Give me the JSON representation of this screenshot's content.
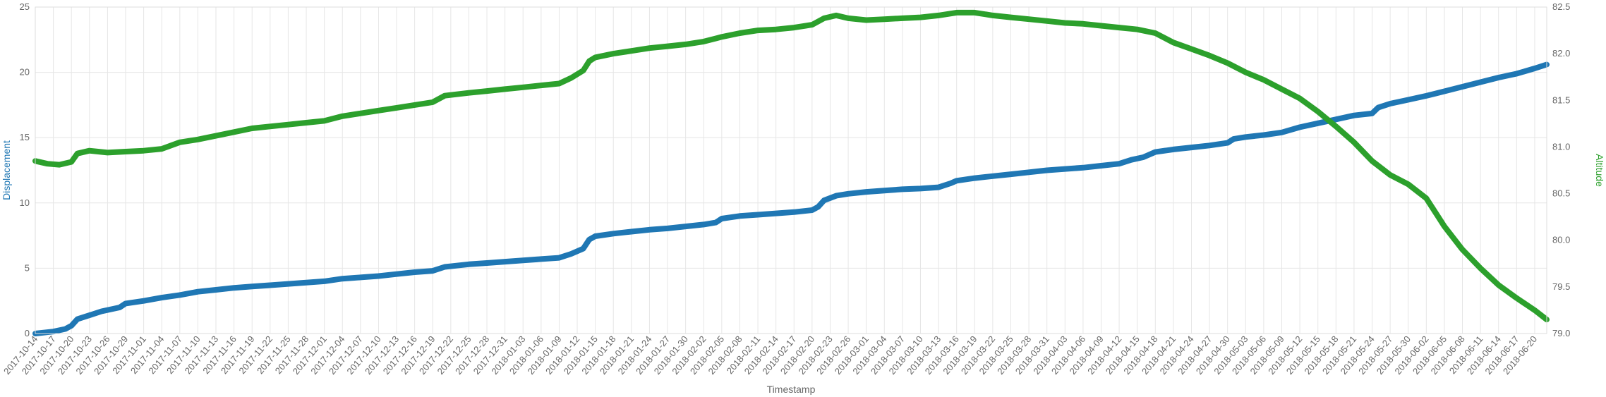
{
  "chart_data": {
    "type": "line",
    "xlabel": "Timestamp",
    "y_left": {
      "label": "Displacement",
      "range": [
        0,
        25
      ],
      "ticks": [
        0,
        5,
        10,
        15,
        20,
        25
      ],
      "tick_labels": [
        "0",
        "5",
        "10",
        "15",
        "20",
        "25"
      ],
      "color": "#1f77b4"
    },
    "y_right": {
      "label": "Altitude",
      "range": [
        79.0,
        82.5
      ],
      "ticks": [
        79.0,
        79.5,
        80.0,
        80.5,
        81.0,
        81.5,
        82.0,
        82.5
      ],
      "tick_labels": [
        "79.0",
        "79.5",
        "80.0",
        "80.5",
        "81.0",
        "81.5",
        "82.0",
        "82.5"
      ],
      "color": "#2ca02c"
    },
    "x_range": [
      "2017-10-14",
      "2018-06-22"
    ],
    "x_tick_labels": [
      "2017-10-14",
      "2017-10-17",
      "2017-10-20",
      "2017-10-23",
      "2017-10-26",
      "2017-10-29",
      "2017-11-01",
      "2017-11-04",
      "2017-11-07",
      "2017-11-10",
      "2017-11-13",
      "2017-11-16",
      "2017-11-19",
      "2017-11-22",
      "2017-11-25",
      "2017-11-28",
      "2017-12-01",
      "2017-12-04",
      "2017-12-07",
      "2017-12-10",
      "2017-12-13",
      "2017-12-16",
      "2017-12-19",
      "2017-12-22",
      "2017-12-25",
      "2017-12-28",
      "2017-12-31",
      "2018-01-03",
      "2018-01-06",
      "2018-01-09",
      "2018-01-12",
      "2018-01-15",
      "2018-01-18",
      "2018-01-21",
      "2018-01-24",
      "2018-01-27",
      "2018-01-30",
      "2018-02-02",
      "2018-02-05",
      "2018-02-08",
      "2018-02-11",
      "2018-02-14",
      "2018-02-17",
      "2018-02-20",
      "2018-02-23",
      "2018-02-26",
      "2018-03-01",
      "2018-03-04",
      "2018-03-07",
      "2018-03-10",
      "2018-03-13",
      "2018-03-16",
      "2018-03-19",
      "2018-03-22",
      "2018-03-25",
      "2018-03-28",
      "2018-03-31",
      "2018-04-03",
      "2018-04-06",
      "2018-04-09",
      "2018-04-12",
      "2018-04-15",
      "2018-04-18",
      "2018-04-21",
      "2018-04-24",
      "2018-04-27",
      "2018-04-30",
      "2018-05-03",
      "2018-05-06",
      "2018-05-09",
      "2018-05-12",
      "2018-05-15",
      "2018-05-18",
      "2018-05-21",
      "2018-05-24",
      "2018-05-27",
      "2018-05-30",
      "2018-06-02",
      "2018-06-05",
      "2018-06-08",
      "2018-06-11",
      "2018-06-14",
      "2018-06-17",
      "2018-06-20"
    ],
    "grid": true,
    "legend": "none",
    "series": [
      {
        "axis": "left",
        "color": "#1f77b4",
        "points": [
          [
            "2017-10-14",
            0.0
          ],
          [
            "2017-10-17",
            0.15
          ],
          [
            "2017-10-19",
            0.35
          ],
          [
            "2017-10-20",
            0.6
          ],
          [
            "2017-10-21",
            1.1
          ],
          [
            "2017-10-23",
            1.4
          ],
          [
            "2017-10-25",
            1.7
          ],
          [
            "2017-10-28",
            2.0
          ],
          [
            "2017-10-29",
            2.3
          ],
          [
            "2017-11-01",
            2.5
          ],
          [
            "2017-11-04",
            2.75
          ],
          [
            "2017-11-07",
            2.95
          ],
          [
            "2017-11-10",
            3.2
          ],
          [
            "2017-11-13",
            3.35
          ],
          [
            "2017-11-16",
            3.5
          ],
          [
            "2017-11-19",
            3.6
          ],
          [
            "2017-11-22",
            3.7
          ],
          [
            "2017-11-25",
            3.8
          ],
          [
            "2017-11-28",
            3.9
          ],
          [
            "2017-12-01",
            4.0
          ],
          [
            "2017-12-04",
            4.2
          ],
          [
            "2017-12-07",
            4.3
          ],
          [
            "2017-12-10",
            4.4
          ],
          [
            "2017-12-13",
            4.55
          ],
          [
            "2017-12-16",
            4.7
          ],
          [
            "2017-12-19",
            4.8
          ],
          [
            "2017-12-21",
            5.1
          ],
          [
            "2017-12-25",
            5.3
          ],
          [
            "2017-12-28",
            5.4
          ],
          [
            "2017-12-31",
            5.5
          ],
          [
            "2018-01-03",
            5.6
          ],
          [
            "2018-01-06",
            5.7
          ],
          [
            "2018-01-09",
            5.8
          ],
          [
            "2018-01-11",
            6.1
          ],
          [
            "2018-01-13",
            6.5
          ],
          [
            "2018-01-14",
            7.2
          ],
          [
            "2018-01-15",
            7.45
          ],
          [
            "2018-01-18",
            7.65
          ],
          [
            "2018-01-21",
            7.8
          ],
          [
            "2018-01-24",
            7.95
          ],
          [
            "2018-01-27",
            8.05
          ],
          [
            "2018-01-30",
            8.2
          ],
          [
            "2018-02-02",
            8.35
          ],
          [
            "2018-02-04",
            8.5
          ],
          [
            "2018-02-05",
            8.8
          ],
          [
            "2018-02-08",
            9.0
          ],
          [
            "2018-02-11",
            9.1
          ],
          [
            "2018-02-14",
            9.2
          ],
          [
            "2018-02-17",
            9.3
          ],
          [
            "2018-02-20",
            9.45
          ],
          [
            "2018-02-21",
            9.7
          ],
          [
            "2018-02-22",
            10.2
          ],
          [
            "2018-02-24",
            10.55
          ],
          [
            "2018-02-26",
            10.7
          ],
          [
            "2018-03-01",
            10.85
          ],
          [
            "2018-03-04",
            10.95
          ],
          [
            "2018-03-07",
            11.05
          ],
          [
            "2018-03-10",
            11.1
          ],
          [
            "2018-03-13",
            11.2
          ],
          [
            "2018-03-15",
            11.5
          ],
          [
            "2018-03-16",
            11.7
          ],
          [
            "2018-03-19",
            11.9
          ],
          [
            "2018-03-22",
            12.05
          ],
          [
            "2018-03-25",
            12.2
          ],
          [
            "2018-03-28",
            12.35
          ],
          [
            "2018-03-31",
            12.5
          ],
          [
            "2018-04-03",
            12.6
          ],
          [
            "2018-04-06",
            12.7
          ],
          [
            "2018-04-09",
            12.85
          ],
          [
            "2018-04-12",
            13.0
          ],
          [
            "2018-04-14",
            13.3
          ],
          [
            "2018-04-16",
            13.5
          ],
          [
            "2018-04-18",
            13.9
          ],
          [
            "2018-04-21",
            14.1
          ],
          [
            "2018-04-24",
            14.25
          ],
          [
            "2018-04-27",
            14.4
          ],
          [
            "2018-04-30",
            14.6
          ],
          [
            "2018-05-01",
            14.9
          ],
          [
            "2018-05-03",
            15.05
          ],
          [
            "2018-05-06",
            15.2
          ],
          [
            "2018-05-09",
            15.4
          ],
          [
            "2018-05-12",
            15.8
          ],
          [
            "2018-05-15",
            16.1
          ],
          [
            "2018-05-18",
            16.4
          ],
          [
            "2018-05-21",
            16.7
          ],
          [
            "2018-05-24",
            16.85
          ],
          [
            "2018-05-25",
            17.3
          ],
          [
            "2018-05-27",
            17.6
          ],
          [
            "2018-05-30",
            17.9
          ],
          [
            "2018-06-02",
            18.2
          ],
          [
            "2018-06-05",
            18.55
          ],
          [
            "2018-06-08",
            18.9
          ],
          [
            "2018-06-11",
            19.25
          ],
          [
            "2018-06-14",
            19.6
          ],
          [
            "2018-06-17",
            19.9
          ],
          [
            "2018-06-20",
            20.3
          ],
          [
            "2018-06-22",
            20.6
          ]
        ]
      },
      {
        "axis": "right",
        "color": "#2ca02c",
        "points": [
          [
            "2017-10-14",
            80.85
          ],
          [
            "2017-10-16",
            80.82
          ],
          [
            "2017-10-18",
            80.81
          ],
          [
            "2017-10-20",
            80.84
          ],
          [
            "2017-10-21",
            80.93
          ],
          [
            "2017-10-23",
            80.96
          ],
          [
            "2017-10-26",
            80.94
          ],
          [
            "2017-10-29",
            80.95
          ],
          [
            "2017-11-01",
            80.96
          ],
          [
            "2017-11-04",
            80.98
          ],
          [
            "2017-11-07",
            81.05
          ],
          [
            "2017-11-10",
            81.08
          ],
          [
            "2017-11-13",
            81.12
          ],
          [
            "2017-11-16",
            81.16
          ],
          [
            "2017-11-19",
            81.2
          ],
          [
            "2017-11-22",
            81.22
          ],
          [
            "2017-11-25",
            81.24
          ],
          [
            "2017-11-28",
            81.26
          ],
          [
            "2017-12-01",
            81.28
          ],
          [
            "2017-12-04",
            81.33
          ],
          [
            "2017-12-07",
            81.36
          ],
          [
            "2017-12-10",
            81.39
          ],
          [
            "2017-12-13",
            81.42
          ],
          [
            "2017-12-16",
            81.45
          ],
          [
            "2017-12-19",
            81.48
          ],
          [
            "2017-12-21",
            81.55
          ],
          [
            "2017-12-25",
            81.58
          ],
          [
            "2017-12-28",
            81.6
          ],
          [
            "2017-12-31",
            81.62
          ],
          [
            "2018-01-03",
            81.64
          ],
          [
            "2018-01-06",
            81.66
          ],
          [
            "2018-01-09",
            81.68
          ],
          [
            "2018-01-11",
            81.74
          ],
          [
            "2018-01-13",
            81.82
          ],
          [
            "2018-01-14",
            81.92
          ],
          [
            "2018-01-15",
            81.96
          ],
          [
            "2018-01-18",
            82.0
          ],
          [
            "2018-01-21",
            82.03
          ],
          [
            "2018-01-24",
            82.06
          ],
          [
            "2018-01-27",
            82.08
          ],
          [
            "2018-01-30",
            82.1
          ],
          [
            "2018-02-02",
            82.13
          ],
          [
            "2018-02-05",
            82.18
          ],
          [
            "2018-02-08",
            82.22
          ],
          [
            "2018-02-11",
            82.25
          ],
          [
            "2018-02-14",
            82.26
          ],
          [
            "2018-02-17",
            82.28
          ],
          [
            "2018-02-20",
            82.31
          ],
          [
            "2018-02-22",
            82.38
          ],
          [
            "2018-02-24",
            82.41
          ],
          [
            "2018-02-26",
            82.38
          ],
          [
            "2018-03-01",
            82.36
          ],
          [
            "2018-03-04",
            82.37
          ],
          [
            "2018-03-07",
            82.38
          ],
          [
            "2018-03-10",
            82.39
          ],
          [
            "2018-03-13",
            82.41
          ],
          [
            "2018-03-16",
            82.44
          ],
          [
            "2018-03-19",
            82.44
          ],
          [
            "2018-03-22",
            82.41
          ],
          [
            "2018-03-25",
            82.39
          ],
          [
            "2018-03-28",
            82.37
          ],
          [
            "2018-03-31",
            82.35
          ],
          [
            "2018-04-03",
            82.33
          ],
          [
            "2018-04-06",
            82.32
          ],
          [
            "2018-04-09",
            82.3
          ],
          [
            "2018-04-12",
            82.28
          ],
          [
            "2018-04-15",
            82.26
          ],
          [
            "2018-04-18",
            82.22
          ],
          [
            "2018-04-21",
            82.12
          ],
          [
            "2018-04-24",
            82.05
          ],
          [
            "2018-04-27",
            81.98
          ],
          [
            "2018-04-30",
            81.9
          ],
          [
            "2018-05-03",
            81.8
          ],
          [
            "2018-05-06",
            81.72
          ],
          [
            "2018-05-09",
            81.62
          ],
          [
            "2018-05-12",
            81.52
          ],
          [
            "2018-05-15",
            81.38
          ],
          [
            "2018-05-18",
            81.22
          ],
          [
            "2018-05-21",
            81.05
          ],
          [
            "2018-05-24",
            80.85
          ],
          [
            "2018-05-27",
            80.7
          ],
          [
            "2018-05-30",
            80.6
          ],
          [
            "2018-06-02",
            80.45
          ],
          [
            "2018-06-05",
            80.15
          ],
          [
            "2018-06-08",
            79.9
          ],
          [
            "2018-06-11",
            79.7
          ],
          [
            "2018-06-14",
            79.52
          ],
          [
            "2018-06-17",
            79.38
          ],
          [
            "2018-06-20",
            79.25
          ],
          [
            "2018-06-22",
            79.15
          ]
        ]
      }
    ]
  }
}
